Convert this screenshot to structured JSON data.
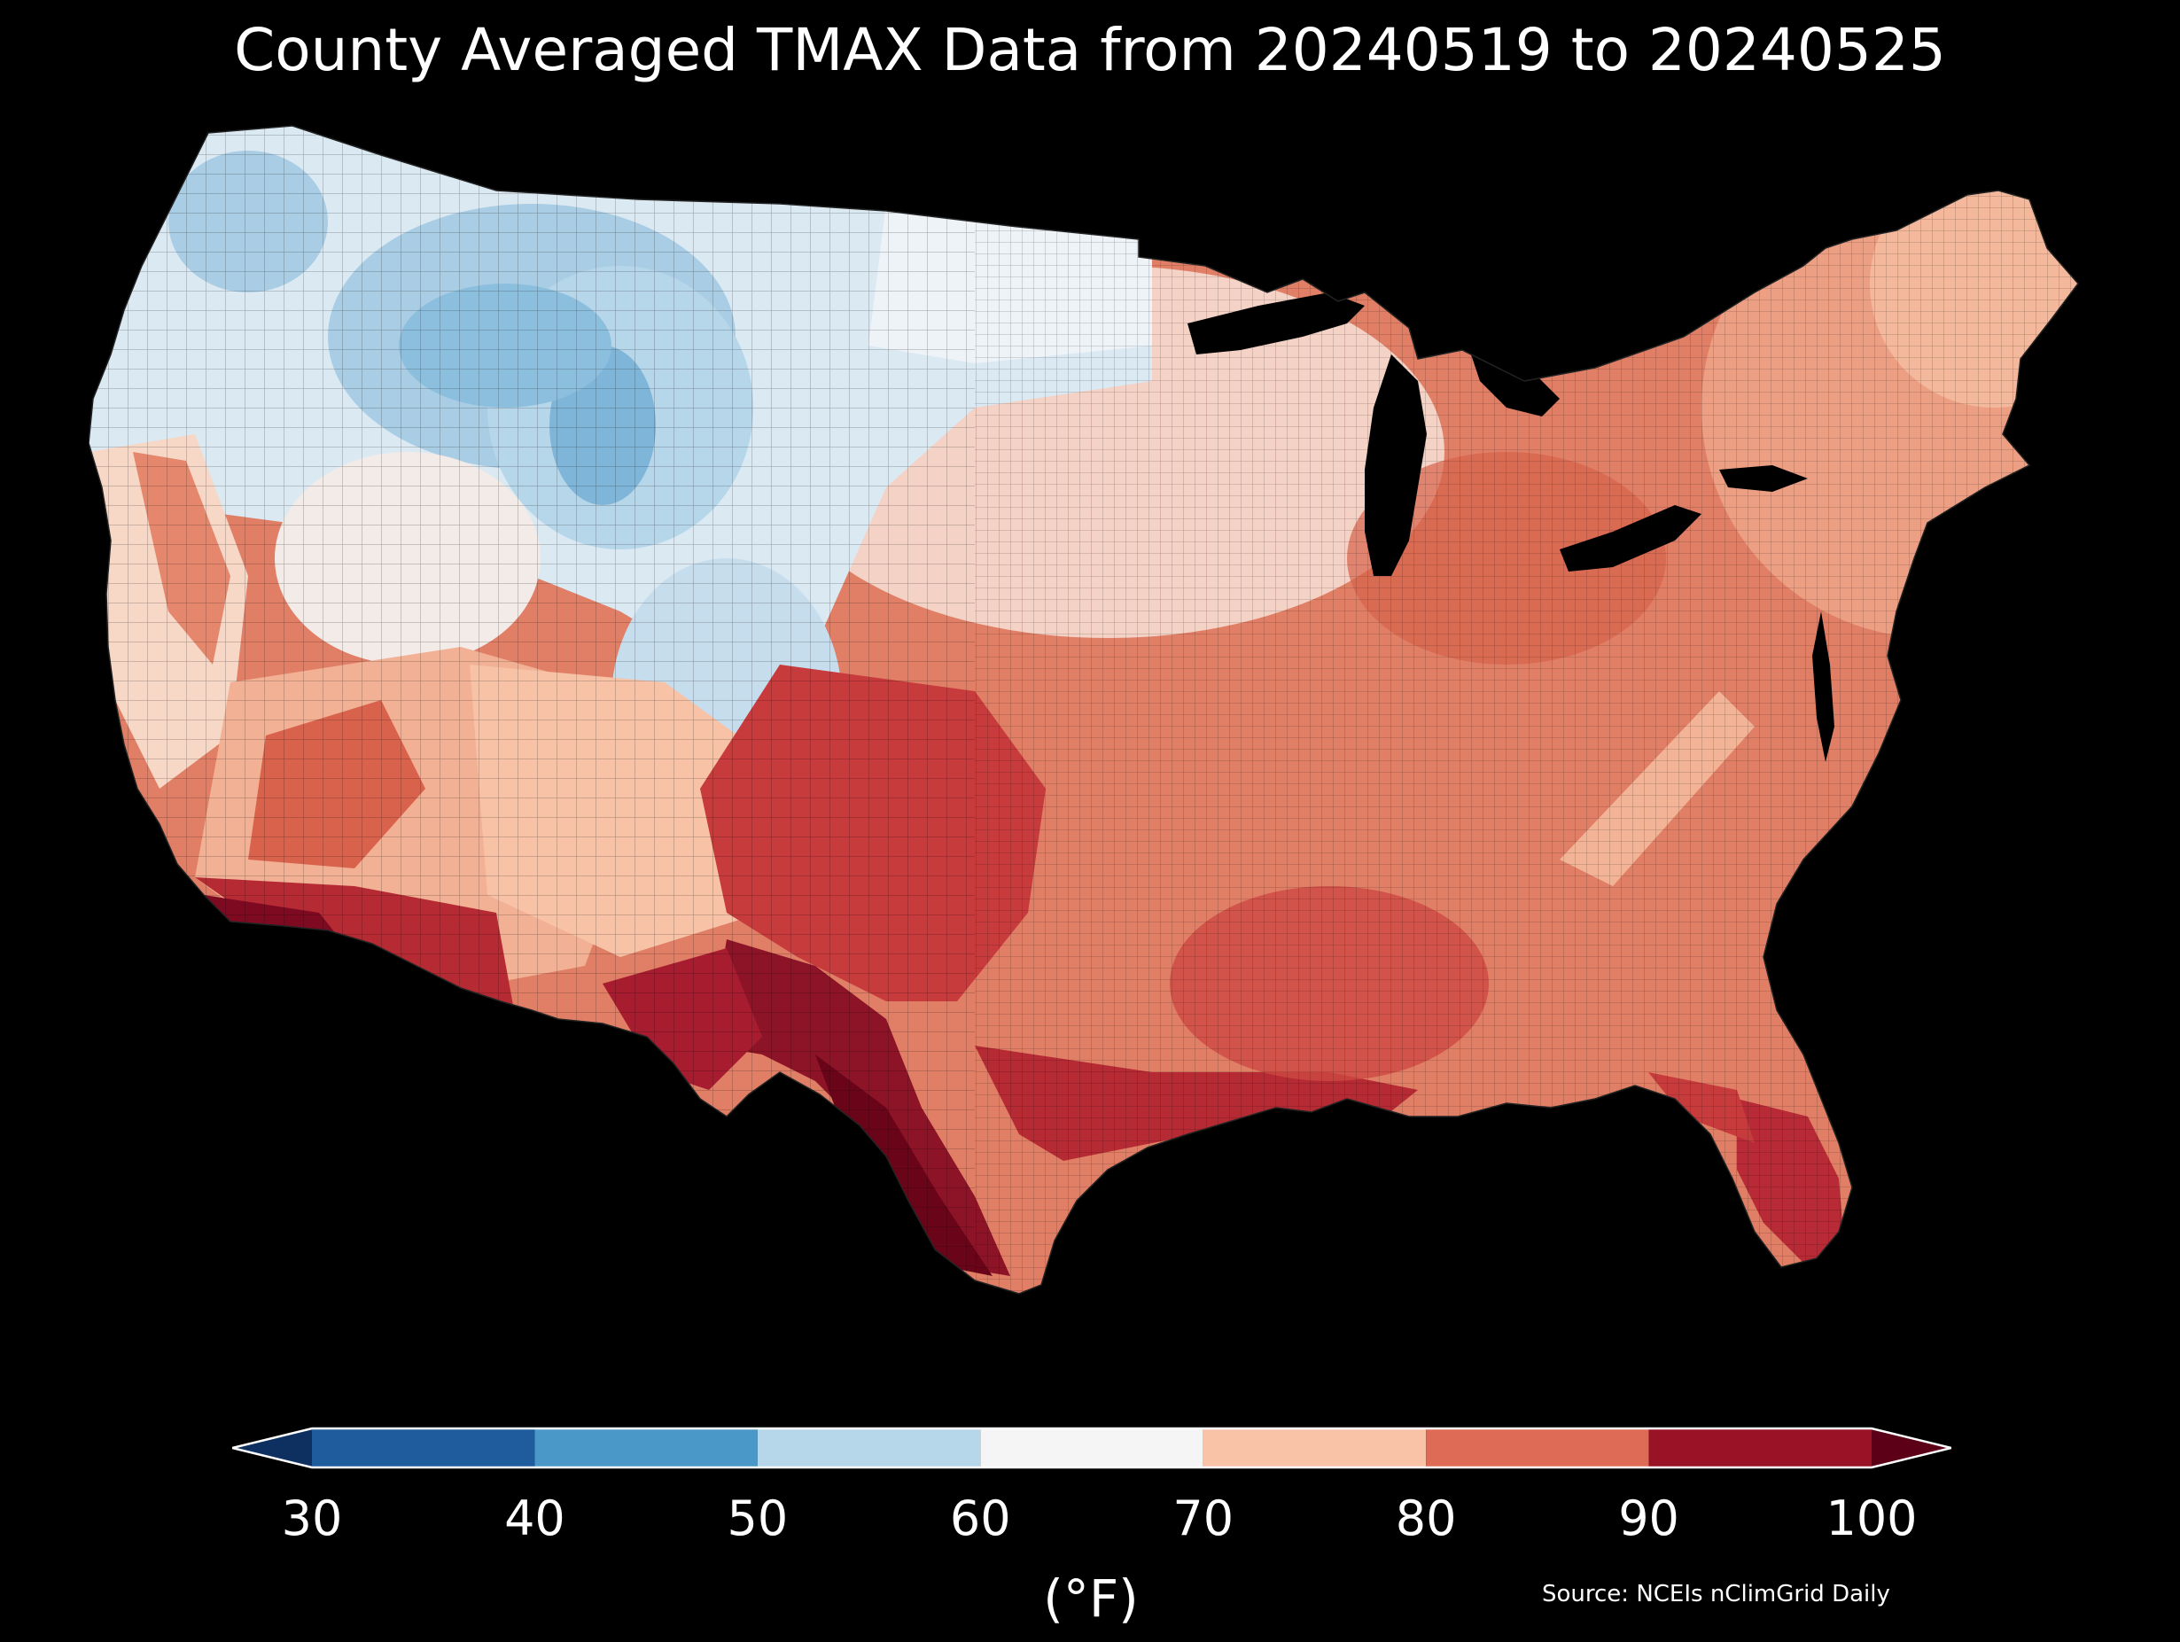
{
  "title": "County Averaged TMAX Data from 20240519 to 20240525",
  "colorbar": {
    "ticks": [
      "30",
      "40",
      "50",
      "60",
      "70",
      "80",
      "90",
      "100"
    ],
    "unit": "(°F)",
    "bins": [
      {
        "from": 30,
        "to": 40,
        "color": "#1f5c9e"
      },
      {
        "from": 40,
        "to": 50,
        "color": "#4a98c8"
      },
      {
        "from": 50,
        "to": 60,
        "color": "#b6d6ea"
      },
      {
        "from": 60,
        "to": 70,
        "color": "#f5f5f5"
      },
      {
        "from": 70,
        "to": 80,
        "color": "#f9c3a7"
      },
      {
        "from": 80,
        "to": 90,
        "color": "#dd6b55"
      },
      {
        "from": 90,
        "to": 100,
        "color": "#9a1225"
      }
    ],
    "under_color": "#0d3060",
    "over_color": "#5c0018"
  },
  "source": "Source: NCEIs nClimGrid Daily",
  "map_colors": {
    "cold": "#8cbfde",
    "cool": "#dbe9f3",
    "mild": "#f7ece6",
    "warm": "#f2b094",
    "hot": "#d9624c",
    "very_hot": "#b52a33",
    "extreme": "#7e0a22"
  }
}
